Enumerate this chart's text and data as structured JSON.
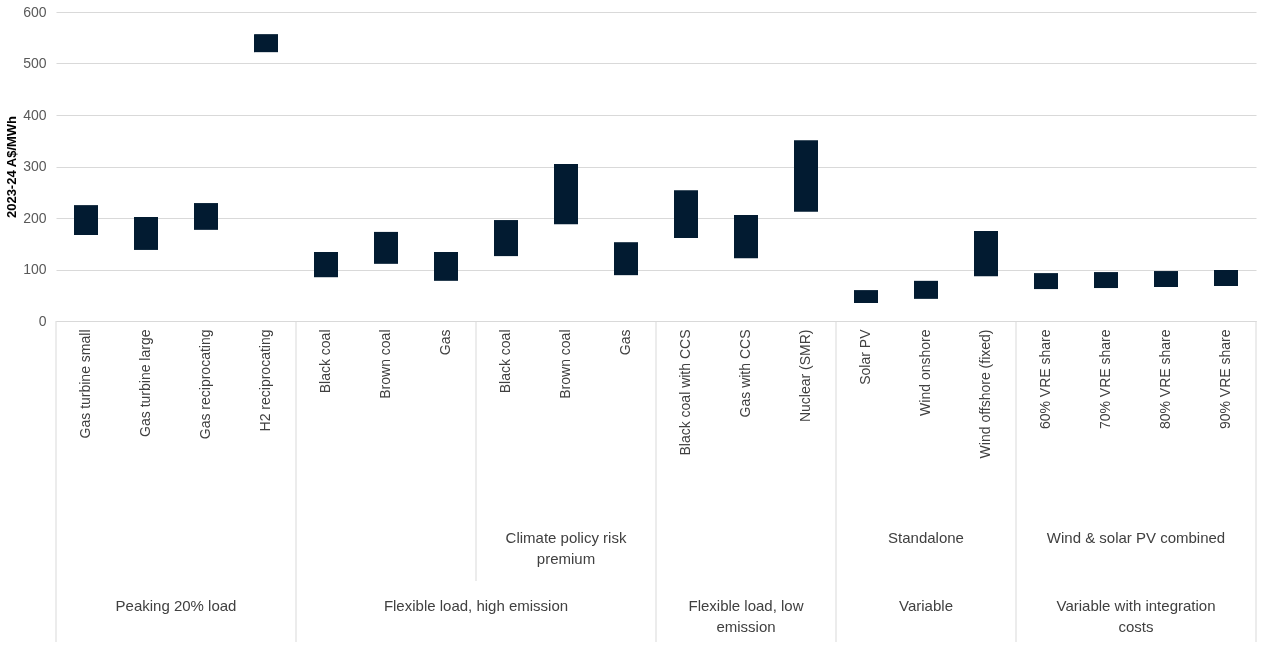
{
  "chart_data": {
    "type": "bar",
    "ylabel": "2023-24 A$/MWh",
    "categories": [
      "Gas turbine small",
      "Gas turbine large",
      "Gas reciprocating",
      "H2 reciprocating",
      "Black coal",
      "Brown coal",
      "Gas",
      "Black coal",
      "Brown coal",
      "Gas",
      "Black coal with CCS",
      "Gas with CCS",
      "Nuclear (SMR)",
      "Solar PV",
      "Wind onshore",
      "Wind offshore (fixed)",
      "60% VRE share",
      "70% VRE share",
      "80% VRE share",
      "90% VRE share"
    ],
    "base": [
      167,
      138,
      177,
      522,
      85,
      111,
      78,
      126,
      188,
      89,
      161,
      122,
      212,
      35,
      43,
      87,
      62,
      64,
      66,
      68
    ],
    "values": [
      58,
      64,
      52,
      35,
      49,
      62,
      56,
      70,
      117,
      64,
      93,
      84,
      139,
      25,
      35,
      88,
      31,
      31,
      31,
      31
    ],
    "color": "#021b31",
    "ylim": [
      0,
      600
    ],
    "yticks": [
      0,
      100,
      200,
      300,
      400,
      500,
      600
    ],
    "grid": "y",
    "annotations": [
      "Climate policy risk premium",
      "Standalone",
      "Wind & solar PV combined",
      "Peaking 20% load",
      "Flexible load, high emission",
      "Flexible load, low emission",
      "Variable",
      "Variable with integration costs"
    ]
  }
}
